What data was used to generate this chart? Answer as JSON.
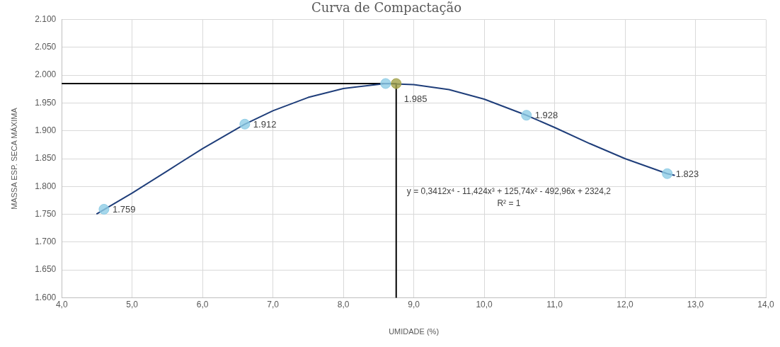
{
  "chart_data": {
    "type": "scatter",
    "title": "Curva de Compactação",
    "xlabel": "UMIDADE (%)",
    "ylabel": "MASSA ESP. SECA MÁXIMA",
    "xlim": [
      4,
      14
    ],
    "xticks": [
      {
        "value": 4,
        "label": "4,0"
      },
      {
        "value": 5,
        "label": "5,0"
      },
      {
        "value": 6,
        "label": "6,0"
      },
      {
        "value": 7,
        "label": "7,0"
      },
      {
        "value": 8,
        "label": "8,0"
      },
      {
        "value": 9,
        "label": "9,0"
      },
      {
        "value": 10,
        "label": "10,0"
      },
      {
        "value": 11,
        "label": "11,0"
      },
      {
        "value": 12,
        "label": "12,0"
      },
      {
        "value": 13,
        "label": "13,0"
      },
      {
        "value": 14,
        "label": "14,0"
      }
    ],
    "ylim": [
      1600,
      2100
    ],
    "yticks": [
      {
        "value": 1600,
        "label": "1.600"
      },
      {
        "value": 1650,
        "label": "1.650"
      },
      {
        "value": 1700,
        "label": "1.700"
      },
      {
        "value": 1750,
        "label": "1.750"
      },
      {
        "value": 1800,
        "label": "1.800"
      },
      {
        "value": 1850,
        "label": "1.850"
      },
      {
        "value": 1900,
        "label": "1.900"
      },
      {
        "value": 1950,
        "label": "1.950"
      },
      {
        "value": 2000,
        "label": "2.000"
      },
      {
        "value": 2050,
        "label": "2.050"
      },
      {
        "value": 2100,
        "label": "2.100"
      }
    ],
    "grid": true,
    "marker": "circle",
    "series": [
      {
        "type": "line",
        "color": "#1f3e7a",
        "marker": "none",
        "x": [
          4.5,
          5,
          5.5,
          6,
          6.6,
          7,
          7.5,
          8,
          8.6,
          9,
          9.5,
          10,
          10.6,
          11,
          11.5,
          12,
          12.6,
          12.7
        ],
        "values": [
          1751,
          1788,
          1828,
          1868,
          1912,
          1936,
          1960,
          1976,
          1985,
          1983,
          1974,
          1957,
          1928,
          1906,
          1877,
          1850,
          1823,
          1820
        ]
      },
      {
        "type": "line",
        "color": "#000000",
        "marker": "none",
        "x": [
          4,
          8.75,
          8.75
        ],
        "values": [
          1985,
          1985,
          1600
        ]
      },
      {
        "color": "#8fcde6",
        "x": [
          4.6,
          6.6,
          8.6,
          10.6,
          12.6
        ],
        "values": [
          1759,
          1912,
          1985,
          1928,
          1823
        ],
        "value_labels": [
          "1.759",
          "1.912",
          "1.985",
          "1.928",
          "1.823"
        ]
      },
      {
        "color": "#a3a34a",
        "x": [
          8.75
        ],
        "values": [
          1985
        ]
      }
    ],
    "annotations": [
      "y = 0,3412x⁴ - 11,424x³ + 125,74x² - 492,96x + 2324,2",
      "R² = 1"
    ]
  }
}
